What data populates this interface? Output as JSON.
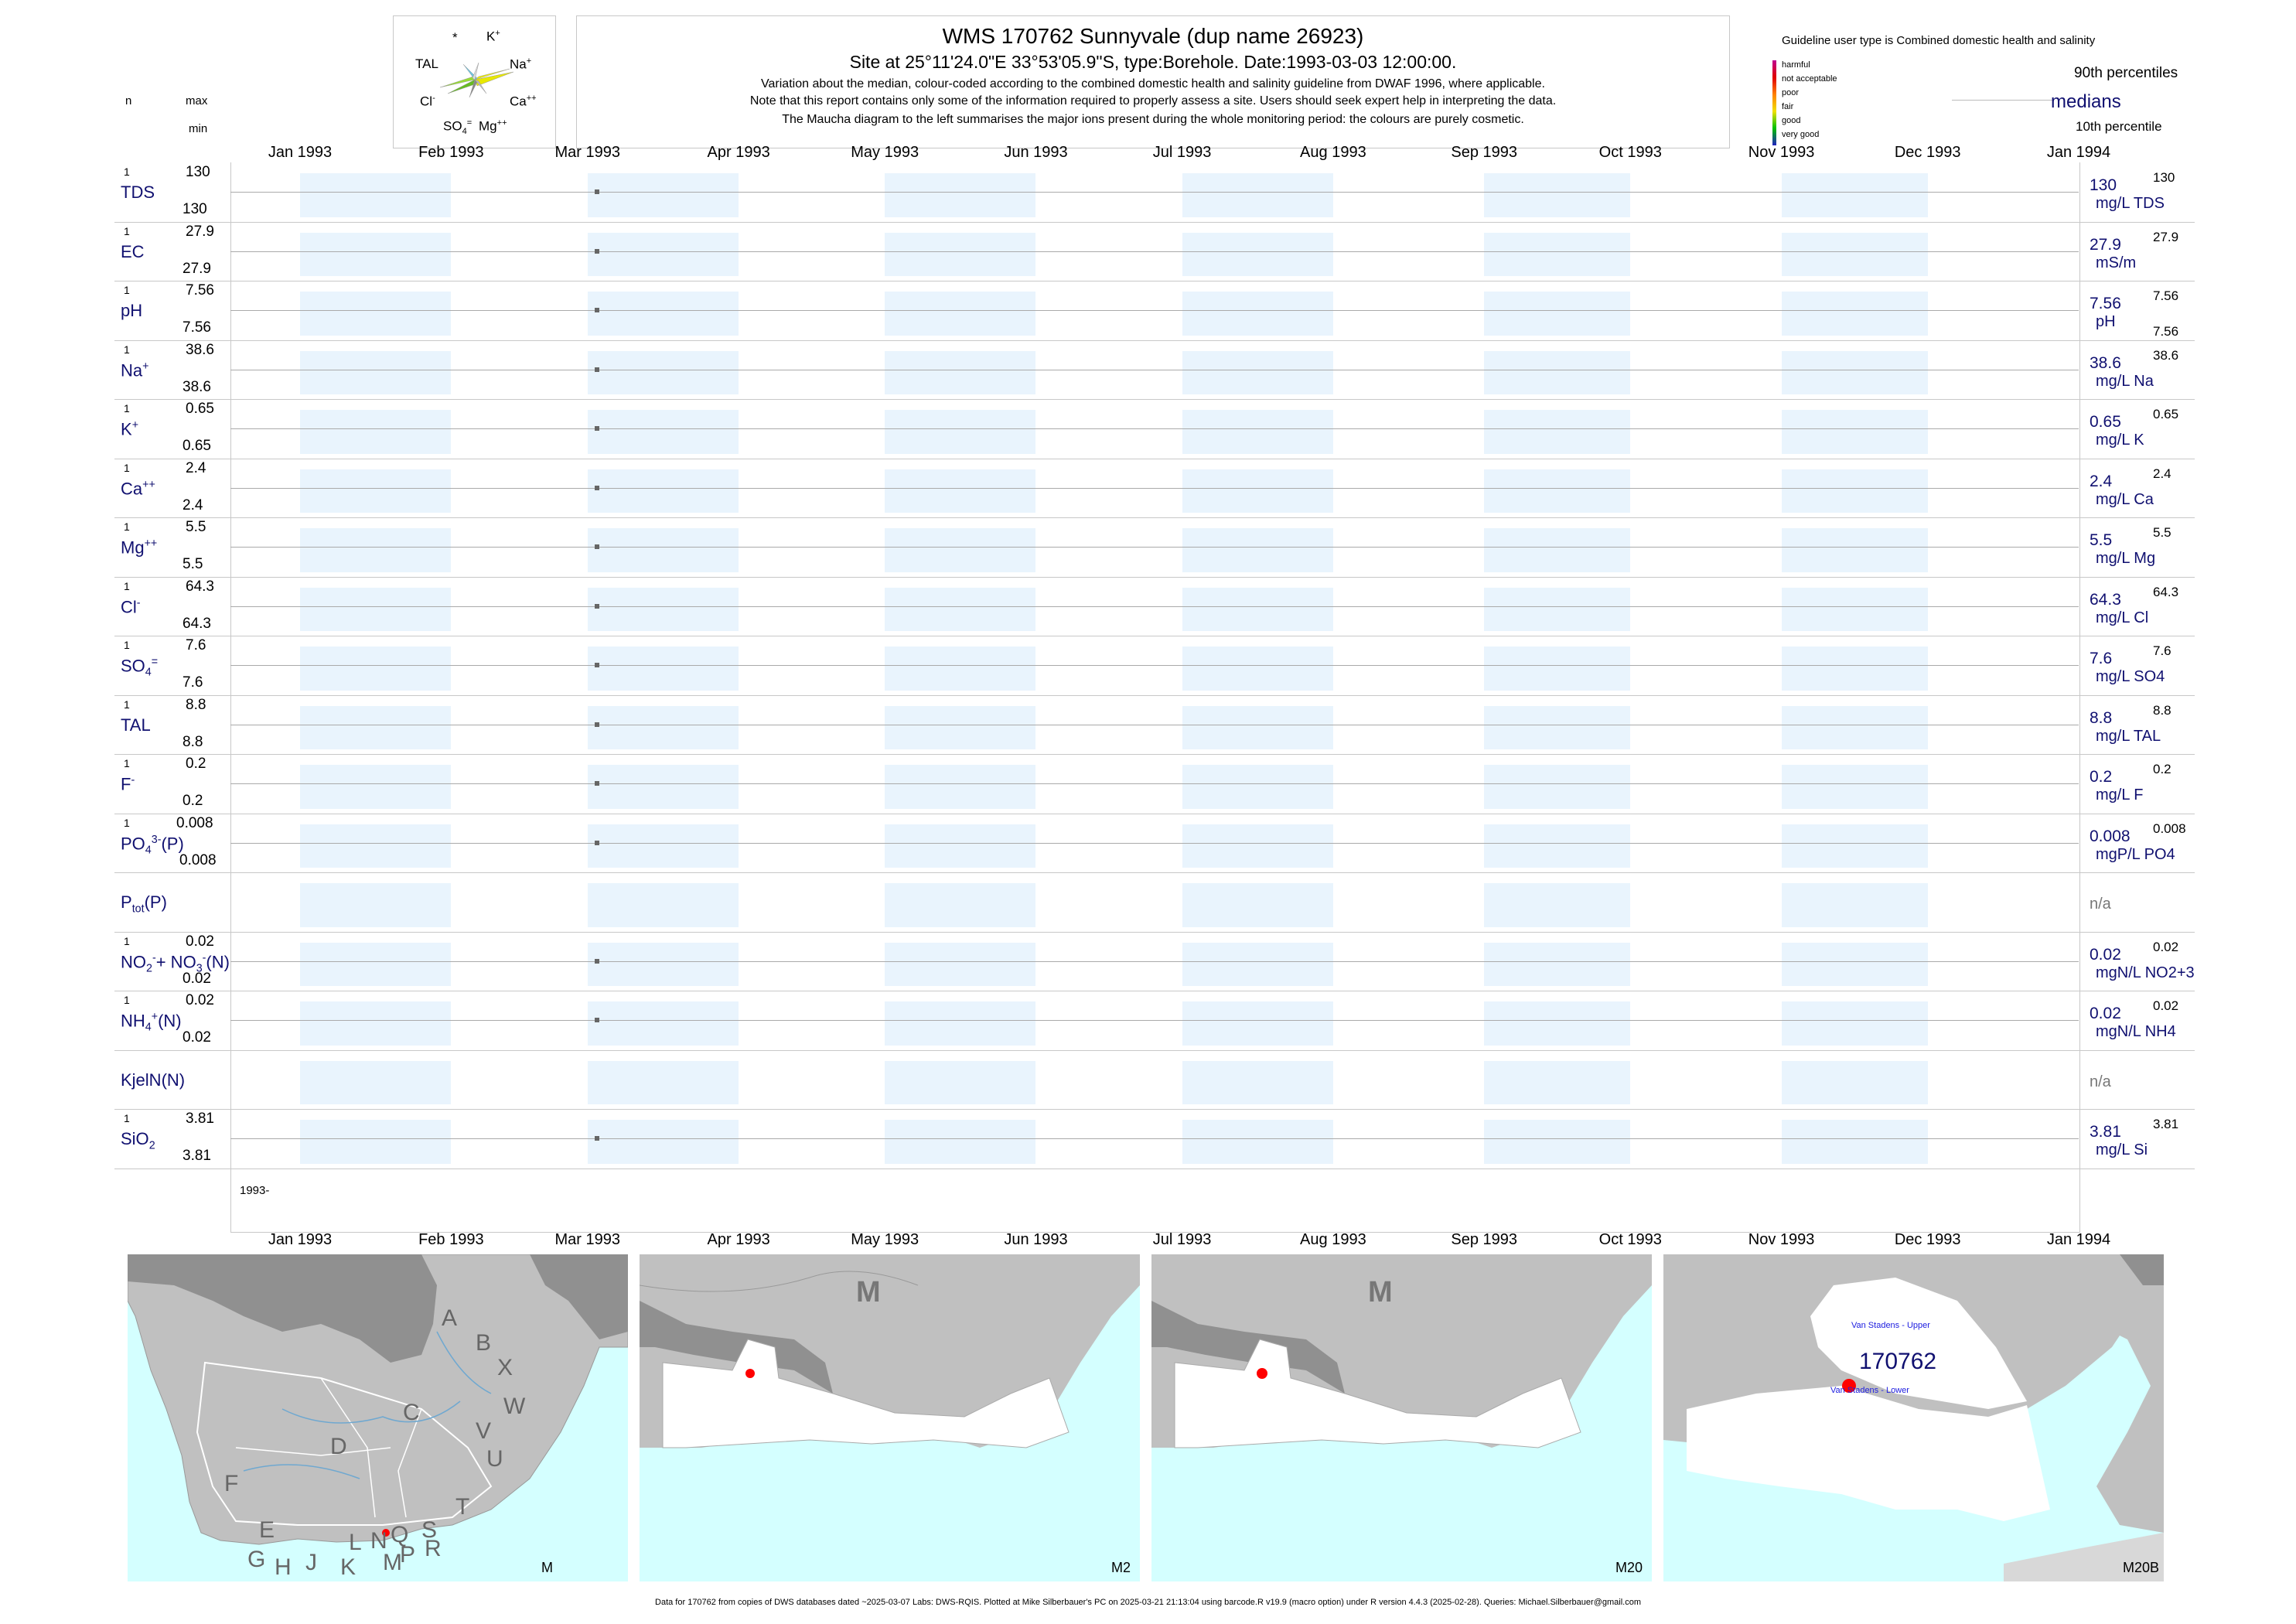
{
  "header": {
    "title": "WMS 170762  Sunnyvale (dup name 26923)",
    "subtitle": "Site at 25°11'24.0\"E 33°53'05.9\"S, type:Borehole. Date:1993-03-03 12:00:00.",
    "desc1": "Variation about the median,  colour-coded according to the combined domestic health and salinity guideline from DWAF 1996, where applicable.",
    "desc2": "Note that this report contains only some of the information required to properly assess a site. Users should seek expert help in interpreting the data.",
    "desc3": "The Maucha diagram to the left summarises the major ions present during the whole monitoring period: the colours are purely cosmetic."
  },
  "left_header": {
    "n": "n",
    "max": "max",
    "min": "min"
  },
  "maucha": {
    "star": "*",
    "k": "K",
    "k_sup": "+",
    "tal": "TAL",
    "na": "Na",
    "na_sup": "+",
    "cl": "Cl",
    "cl_sup": "-",
    "ca": "Ca",
    "ca_sup": "++",
    "so4": "SO",
    "so4_sub": "4",
    "so4_sup": "=",
    "mg": "Mg",
    "mg_sup": "++"
  },
  "legend": {
    "guideline_text": "Guideline user type is Combined domestic health and salinity",
    "levels": [
      "harmful",
      "not acceptable",
      "poor",
      "fair",
      "good",
      "very good"
    ],
    "level_colors": [
      "#c00090",
      "#e00000",
      "#ff8000",
      "#f0e000",
      "#00c000",
      "#2020c0"
    ],
    "p90": "90th percentiles",
    "medians": "medians",
    "p10": "10th percentile"
  },
  "months": [
    "Jan 1993",
    "Feb 1993",
    "Mar 1993",
    "Apr 1993",
    "May 1993",
    "Jun 1993",
    "Jul 1993",
    "Aug 1993",
    "Sep 1993",
    "Oct 1993",
    "Nov 1993",
    "Dec 1993",
    "Jan 1994"
  ],
  "year_label": "1993-",
  "chart_data": {
    "type": "scatter",
    "x_dates": [
      "1993-03-03"
    ],
    "xlim": [
      "1993-01-01",
      "1994-01-01"
    ],
    "shaded_month_bands": true,
    "parameters": [
      {
        "name": "TDS",
        "n": "1",
        "max": "130",
        "min": "130",
        "median": "130",
        "unit": "mg/L TDS",
        "p90": "130",
        "p10": "",
        "value": 130
      },
      {
        "name": "EC",
        "n": "1",
        "max": "27.9",
        "min": "27.9",
        "median": "27.9",
        "unit": "mS/m",
        "p90": "27.9",
        "p10": "",
        "value": 27.9
      },
      {
        "name": "pH",
        "n": "1",
        "max": "7.56",
        "min": "7.56",
        "median": "7.56",
        "unit": "pH",
        "p90": "7.56",
        "p10": "7.56",
        "value": 7.56
      },
      {
        "name": "Na",
        "name_sup": "+",
        "n": "1",
        "max": "38.6",
        "min": "38.6",
        "median": "38.6",
        "unit": "mg/L Na",
        "p90": "38.6",
        "p10": "",
        "value": 38.6
      },
      {
        "name": "K",
        "name_sup": "+",
        "n": "1",
        "max": "0.65",
        "min": "0.65",
        "median": "0.65",
        "unit": "mg/L K",
        "p90": "0.65",
        "p10": "",
        "value": 0.65
      },
      {
        "name": "Ca",
        "name_sup": "++",
        "n": "1",
        "max": "2.4",
        "min": "2.4",
        "median": "2.4",
        "unit": "mg/L Ca",
        "p90": "2.4",
        "p10": "",
        "value": 2.4
      },
      {
        "name": "Mg",
        "name_sup": "++",
        "n": "1",
        "max": "5.5",
        "min": "5.5",
        "median": "5.5",
        "unit": "mg/L Mg",
        "p90": "5.5",
        "p10": "",
        "value": 5.5
      },
      {
        "name": "Cl",
        "name_sup": "-",
        "n": "1",
        "max": "64.3",
        "min": "64.3",
        "median": "64.3",
        "unit": "mg/L Cl",
        "p90": "64.3",
        "p10": "",
        "value": 64.3
      },
      {
        "name": "SO",
        "name_sub": "4",
        "name_sup": "=",
        "n": "1",
        "max": "7.6",
        "min": "7.6",
        "median": "7.6",
        "unit": "mg/L SO4",
        "p90": "7.6",
        "p10": "",
        "value": 7.6
      },
      {
        "name": "TAL",
        "n": "1",
        "max": "8.8",
        "min": "8.8",
        "median": "8.8",
        "unit": "mg/L TAL",
        "p90": "8.8",
        "p10": "",
        "value": 8.8
      },
      {
        "name": "F",
        "name_sup": "-",
        "n": "1",
        "max": "0.2",
        "min": "0.2",
        "median": "0.2",
        "unit": "mg/L F",
        "p90": "0.2",
        "p10": "",
        "value": 0.2
      },
      {
        "name": "PO",
        "name_sub": "4",
        "name_sup": "3-",
        "name_tail": "(P)",
        "n": "1",
        "max": "0.008",
        "min": "0.008",
        "median": "0.008",
        "unit": "mgP/L PO4",
        "p90": "0.008",
        "p10": "",
        "value": 0.008
      },
      {
        "name": "P",
        "name_sub": "tot",
        "name_tail": "(P)",
        "n": "",
        "max": "",
        "min": "",
        "median": "n/a",
        "unit": "",
        "p90": "",
        "p10": "",
        "value": null
      },
      {
        "name": "NO",
        "name_sub": "2",
        "name_sup": "-",
        "name_tail": "+ NO",
        "name_sub2": "3",
        "name_sup2": "-",
        "name_tail2": "(N)",
        "n": "1",
        "max": "0.02",
        "min": "0.02",
        "median": "0.02",
        "unit": "mgN/L NO2+3",
        "p90": "0.02",
        "p10": "",
        "value": 0.02
      },
      {
        "name": "NH",
        "name_sub": "4",
        "name_sup": "+",
        "name_tail": "(N)",
        "n": "1",
        "max": "0.02",
        "min": "0.02",
        "median": "0.02",
        "unit": "mgN/L NH4",
        "p90": "0.02",
        "p10": "",
        "value": 0.02
      },
      {
        "name": "KjelN(N)",
        "n": "",
        "max": "",
        "min": "",
        "median": "n/a",
        "unit": "",
        "p90": "",
        "p10": "",
        "value": null
      },
      {
        "name": "SiO",
        "name_sub": "2",
        "n": "1",
        "max": "3.81",
        "min": "3.81",
        "median": "3.81",
        "unit": "mg/L Si",
        "p90": "3.81",
        "p10": "",
        "value": 3.81
      }
    ]
  },
  "maps": {
    "m1_labels": [
      "A",
      "B",
      "X",
      "W",
      "C",
      "D",
      "V",
      "U",
      "F",
      "E",
      "T",
      "G",
      "H",
      "J",
      "K",
      "L",
      "N",
      "Q",
      "S",
      "P",
      "R",
      "M"
    ],
    "m1_corner": "M",
    "m2_big": "M",
    "m2_corner": "M2",
    "m3_big": "M",
    "m3_corner": "M20",
    "m4_corner": "M20B",
    "m4_site": "170762",
    "m4_upper": "Van Stadens - Upper",
    "m4_lower": "Van Stadens - Lower",
    "colors": {
      "land": "#c0c0c0",
      "sea": "#d4ffff",
      "dark": "#888888",
      "region": "#ffffff",
      "site": "#ff0000",
      "navy": "#101070"
    }
  },
  "footer": "Data for 170762 from copies of DWS databases dated ~2025-03-07 Labs: DWS-RQIS. Plotted at Mike Silberbauer's PC on 2025-03-21 21:13:04 using barcode.R v19.9 (macro option) under R version 4.4.3 (2025-02-28). Queries: Michael.Silberbauer@gmail.com"
}
